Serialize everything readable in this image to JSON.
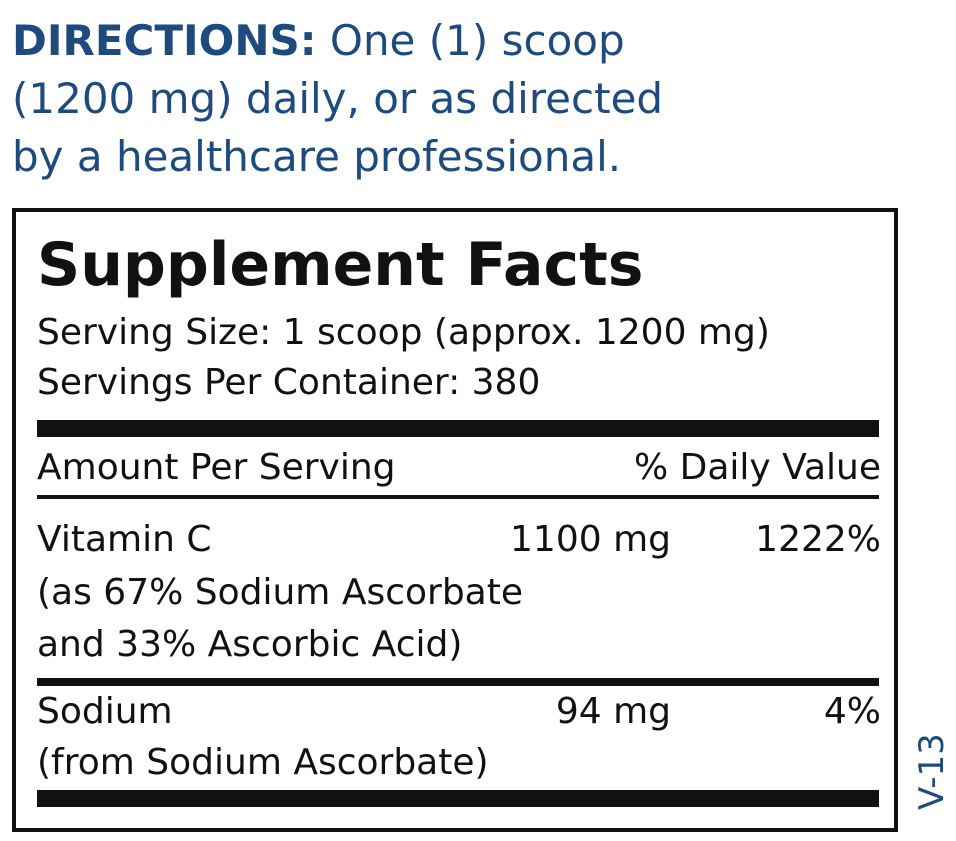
{
  "directions": {
    "label": "DIRECTIONS:",
    "text_line1": " One (1) scoop",
    "text_line2": "(1200 mg) daily, or as directed",
    "text_line3": "by a healthcare professional."
  },
  "facts": {
    "title": "Supplement Facts",
    "serving_size": "Serving Size: 1 scoop (approx. 1200 mg)",
    "servings_per_container": "Servings Per Container: 380",
    "header_amount": "Amount Per Serving",
    "header_dv": "% Daily Value",
    "rows": [
      {
        "name": "Vitamin C",
        "amount": "1100 mg",
        "dv": "1222%",
        "note1": "(as 67% Sodium Ascorbate",
        "note2": "and 33% Ascorbic Acid)"
      },
      {
        "name": "Sodium",
        "amount": "94 mg",
        "dv": "4%",
        "note1": "(from Sodium Ascorbate)"
      }
    ]
  },
  "version_code": "V-13",
  "colors": {
    "brand_blue": "#1f4a7e",
    "text": "#111111"
  }
}
